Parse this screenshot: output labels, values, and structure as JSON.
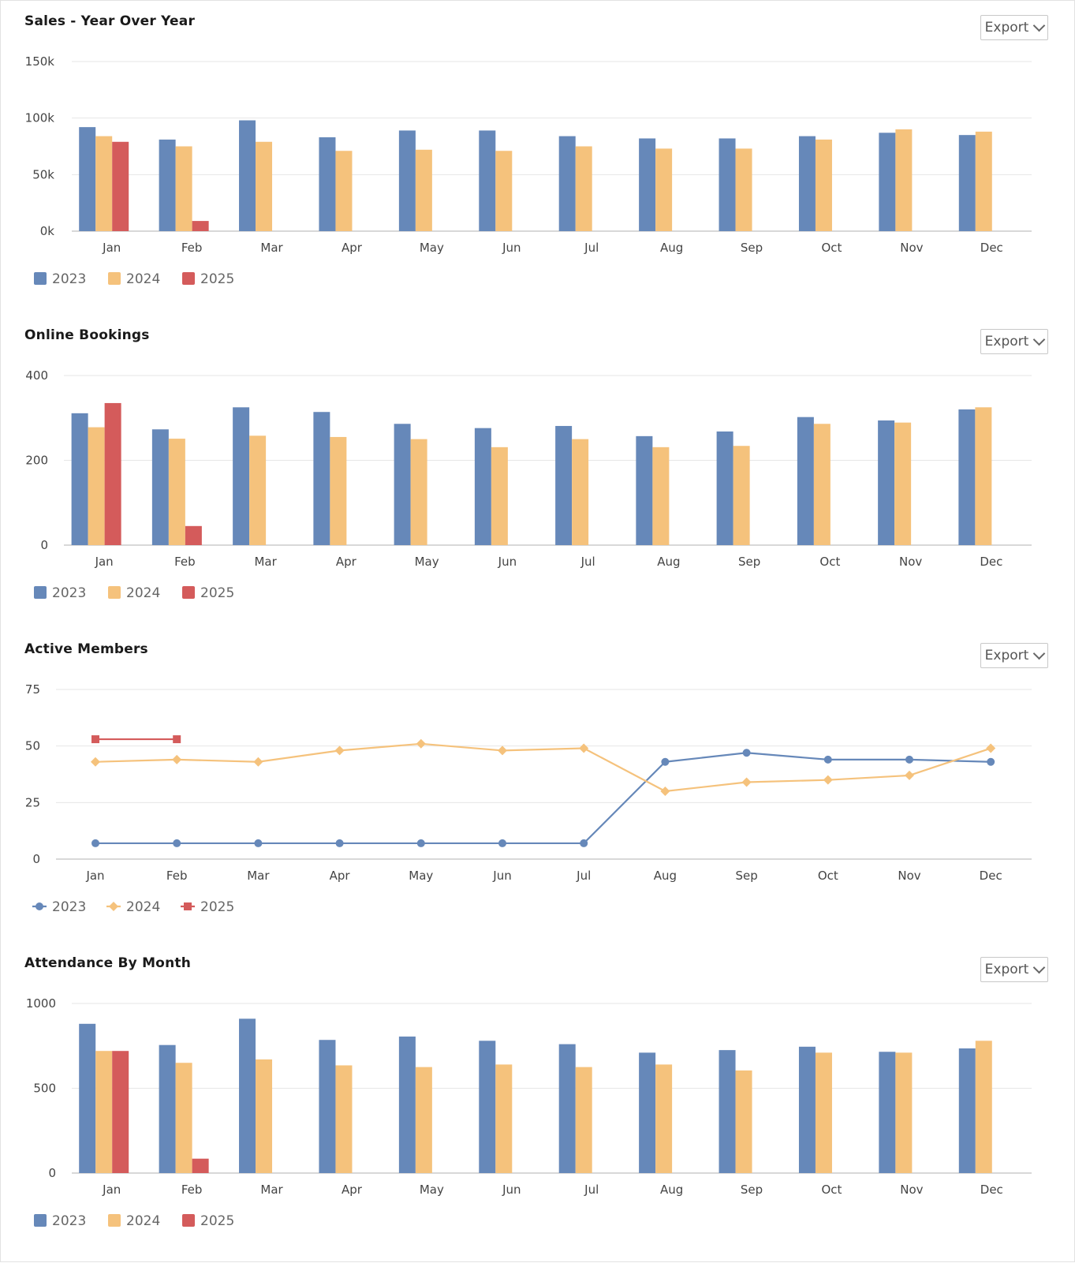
{
  "colors": {
    "2023": "#6688b9",
    "2024": "#f5c27c",
    "2025": "#d45b5b"
  },
  "panels": [
    {
      "title": "Sales - Year Over Year",
      "export_label": "Export"
    },
    {
      "title": "Online Bookings",
      "export_label": "Export"
    },
    {
      "title": "Active Members",
      "export_label": "Export"
    },
    {
      "title": "Attendance By Month",
      "export_label": "Export"
    }
  ],
  "chart_data": [
    {
      "type": "bar",
      "title": "Sales - Year Over Year",
      "categories": [
        "Jan",
        "Feb",
        "Mar",
        "Apr",
        "May",
        "Jun",
        "Jul",
        "Aug",
        "Sep",
        "Oct",
        "Nov",
        "Dec"
      ],
      "ylim": [
        0,
        150
      ],
      "yticks": [
        0,
        50,
        100,
        150
      ],
      "ytick_labels": [
        "0k",
        "50k",
        "100k",
        "150k"
      ],
      "grid": true,
      "legend": "bottom-left",
      "series": [
        {
          "name": "2023",
          "values": [
            92,
            81,
            98,
            83,
            89,
            89,
            84,
            82,
            82,
            84,
            87,
            85
          ]
        },
        {
          "name": "2024",
          "values": [
            84,
            75,
            79,
            71,
            72,
            71,
            75,
            73,
            73,
            81,
            90,
            88
          ]
        },
        {
          "name": "2025",
          "values": [
            79,
            9,
            null,
            null,
            null,
            null,
            null,
            null,
            null,
            null,
            null,
            null
          ]
        }
      ]
    },
    {
      "type": "bar",
      "title": "Online Bookings",
      "categories": [
        "Jan",
        "Feb",
        "Mar",
        "Apr",
        "May",
        "Jun",
        "Jul",
        "Aug",
        "Sep",
        "Oct",
        "Nov",
        "Dec"
      ],
      "ylim": [
        0,
        400
      ],
      "yticks": [
        0,
        200,
        400
      ],
      "ytick_labels": [
        "0",
        "200",
        "400"
      ],
      "grid": true,
      "legend": "bottom-left",
      "series": [
        {
          "name": "2023",
          "values": [
            311,
            273,
            325,
            314,
            286,
            276,
            281,
            257,
            268,
            302,
            294,
            320
          ]
        },
        {
          "name": "2024",
          "values": [
            278,
            251,
            258,
            255,
            250,
            231,
            250,
            231,
            234,
            286,
            289,
            325
          ]
        },
        {
          "name": "2025",
          "values": [
            335,
            45,
            null,
            null,
            null,
            null,
            null,
            null,
            null,
            null,
            null,
            null
          ]
        }
      ]
    },
    {
      "type": "line",
      "title": "Active Members",
      "categories": [
        "Jan",
        "Feb",
        "Mar",
        "Apr",
        "May",
        "Jun",
        "Jul",
        "Aug",
        "Sep",
        "Oct",
        "Nov",
        "Dec"
      ],
      "ylim": [
        0,
        75
      ],
      "yticks": [
        0,
        25,
        50,
        75
      ],
      "ytick_labels": [
        "0",
        "25",
        "50",
        "75"
      ],
      "grid": true,
      "legend": "bottom-left",
      "series": [
        {
          "name": "2023",
          "values": [
            7,
            7,
            7,
            7,
            7,
            7,
            7,
            43,
            47,
            44,
            44,
            43
          ]
        },
        {
          "name": "2024",
          "values": [
            43,
            44,
            43,
            48,
            51,
            48,
            49,
            30,
            34,
            35,
            37,
            49
          ]
        },
        {
          "name": "2025",
          "values": [
            53,
            53,
            null,
            null,
            null,
            null,
            null,
            null,
            null,
            null,
            null,
            null
          ]
        }
      ]
    },
    {
      "type": "bar",
      "title": "Attendance By Month",
      "categories": [
        "Jan",
        "Feb",
        "Mar",
        "Apr",
        "May",
        "Jun",
        "Jul",
        "Aug",
        "Sep",
        "Oct",
        "Nov",
        "Dec"
      ],
      "ylim": [
        0,
        1000
      ],
      "yticks": [
        0,
        500,
        1000
      ],
      "ytick_labels": [
        "0",
        "500",
        "1000"
      ],
      "grid": true,
      "legend": "bottom-left",
      "series": [
        {
          "name": "2023",
          "values": [
            880,
            755,
            910,
            785,
            805,
            780,
            760,
            710,
            725,
            745,
            715,
            735
          ]
        },
        {
          "name": "2024",
          "values": [
            720,
            650,
            670,
            635,
            625,
            640,
            625,
            640,
            605,
            710,
            710,
            780
          ]
        },
        {
          "name": "2025",
          "values": [
            720,
            85,
            null,
            null,
            null,
            null,
            null,
            null,
            null,
            null,
            null,
            null
          ]
        }
      ]
    }
  ]
}
